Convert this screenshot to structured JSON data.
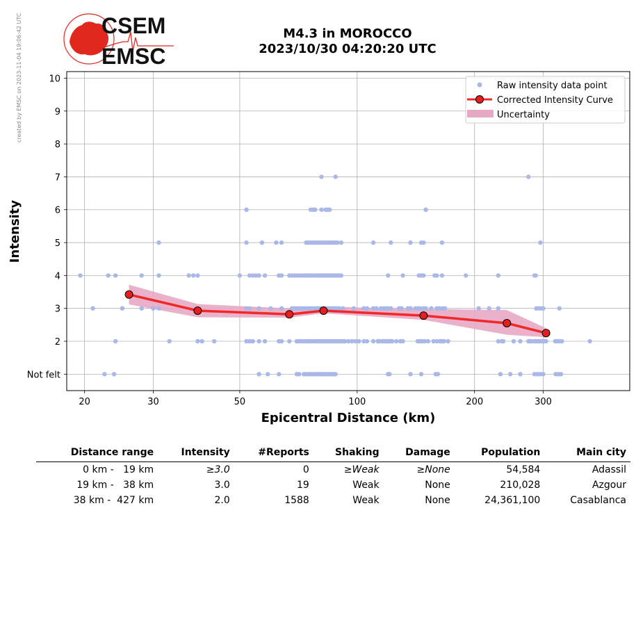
{
  "side_note": "created by EMSC on 2023-11-04 19:06:42 UTC",
  "logo": {
    "line1": "CSEM",
    "line2": "EMSC",
    "accent": "#e0281f"
  },
  "title": {
    "line1": "M4.3 in MOROCCO",
    "line2": "2023/10/30 04:20:20 UTC"
  },
  "chart_data": {
    "type": "scatter",
    "xlabel": "Epicentral Distance (km)",
    "ylabel": "Intensity",
    "x_scale": "log",
    "xlim": [
      18,
      500
    ],
    "ylim": [
      0.5,
      10.2
    ],
    "x_ticks": [
      20,
      30,
      50,
      100,
      200,
      300
    ],
    "y_ticks": [
      {
        "value": 1,
        "label": "Not felt"
      },
      {
        "value": 2,
        "label": "2"
      },
      {
        "value": 3,
        "label": "3"
      },
      {
        "value": 4,
        "label": "4"
      },
      {
        "value": 5,
        "label": "5"
      },
      {
        "value": 6,
        "label": "6"
      },
      {
        "value": 7,
        "label": "7"
      },
      {
        "value": 8,
        "label": "8"
      },
      {
        "value": 9,
        "label": "9"
      },
      {
        "value": 10,
        "label": "10"
      }
    ],
    "grid": true,
    "legend_position": "top-right",
    "legend": [
      "Raw intensity data point",
      "Corrected Intensity Curve",
      "Uncertainty"
    ],
    "colors": {
      "raw": "#aab8e8",
      "curve": "#f02828",
      "marker": "#e81e1e",
      "uncertainty": "#e8a8c4"
    },
    "raw_points": [
      {
        "y": 1,
        "x": [
          22.5,
          23.8,
          56,
          59,
          63,
          70,
          71,
          73,
          74,
          75,
          76,
          77,
          78,
          79,
          80,
          81,
          82,
          83,
          84,
          85,
          86,
          87,
          88,
          120,
          121,
          137,
          146,
          159,
          161,
          233,
          247,
          262,
          285,
          290,
          295,
          300,
          323,
          328,
          333
        ]
      },
      {
        "y": 2,
        "x": [
          24,
          33,
          39,
          40,
          43,
          52,
          53,
          54,
          56,
          58,
          63,
          64,
          67,
          70,
          71,
          72,
          73,
          74,
          75,
          76,
          77,
          78,
          79,
          80,
          81,
          82,
          83,
          84,
          85,
          86,
          87,
          88,
          89,
          90,
          91,
          92,
          93,
          95,
          97,
          99,
          101,
          104,
          106,
          110,
          113,
          114,
          116,
          117,
          118,
          119,
          120,
          121,
          122,
          123,
          126,
          129,
          131,
          143,
          145,
          147,
          149,
          152,
          157,
          160,
          163,
          165,
          167,
          171,
          230,
          235,
          237,
          252,
          262,
          275,
          277,
          280,
          285,
          287,
          290,
          292,
          295,
          297,
          300,
          302,
          305,
          322,
          326,
          330,
          335,
          395
        ]
      },
      {
        "y": 3,
        "x": [
          21,
          25,
          28,
          30,
          31,
          52,
          53,
          56,
          60,
          64,
          68,
          69,
          70,
          71,
          72,
          73,
          74,
          75,
          76,
          77,
          78,
          79,
          80,
          81,
          82,
          83,
          84,
          85,
          86,
          87,
          88,
          89,
          90,
          92,
          98,
          104,
          106,
          110,
          112,
          115,
          117,
          119,
          120,
          122,
          128,
          130,
          135,
          137,
          141,
          143,
          145,
          148,
          150,
          155,
          160,
          163,
          166,
          168,
          205,
          218,
          230,
          288,
          292,
          296,
          300,
          330
        ]
      },
      {
        "y": 4,
        "x": [
          19.5,
          23,
          24,
          28,
          31,
          37,
          38,
          39,
          50,
          53,
          54,
          55,
          56,
          58,
          63,
          64,
          67,
          68,
          69,
          70,
          71,
          72,
          73,
          74,
          75,
          76,
          77,
          78,
          79,
          80,
          81,
          82,
          83,
          84,
          85,
          86,
          87,
          88,
          89,
          90,
          91,
          120,
          131,
          144,
          146,
          148,
          158,
          160,
          165,
          190,
          230,
          285,
          287
        ]
      },
      {
        "y": 5,
        "x": [
          31,
          52,
          57,
          62,
          64,
          74,
          75,
          76,
          77,
          78,
          79,
          80,
          81,
          82,
          83,
          84,
          85,
          86,
          87,
          88,
          89,
          91,
          110,
          122,
          137,
          146,
          148,
          165,
          295
        ]
      },
      {
        "y": 6,
        "x": [
          52,
          76,
          77,
          78,
          81,
          83,
          84,
          85,
          150
        ]
      },
      {
        "y": 7,
        "x": [
          81,
          88,
          275
        ]
      }
    ],
    "curve": [
      {
        "x": 26,
        "y": 3.42
      },
      {
        "x": 39,
        "y": 2.93
      },
      {
        "x": 67,
        "y": 2.82
      },
      {
        "x": 82,
        "y": 2.93
      },
      {
        "x": 148,
        "y": 2.78
      },
      {
        "x": 242,
        "y": 2.55
      },
      {
        "x": 305,
        "y": 2.25
      }
    ],
    "uncertainty": {
      "x": [
        26,
        39,
        67,
        82,
        148,
        242,
        305
      ],
      "upper": [
        3.72,
        3.13,
        3.0,
        3.05,
        2.98,
        2.95,
        2.4
      ],
      "lower": [
        3.12,
        2.73,
        2.72,
        2.85,
        2.65,
        2.2,
        2.12
      ]
    }
  },
  "table": {
    "headers": [
      "Distance range",
      "Intensity",
      "#Reports",
      "Shaking",
      "Damage",
      "Population",
      "Main city"
    ],
    "rows": [
      {
        "range": "0 km -   19 km",
        "intensity": "≥3.0",
        "reports": "0",
        "shaking": "≥Weak",
        "damage": "≥None",
        "population": "54,584",
        "city": "Adassil"
      },
      {
        "range": "19 km -   38 km",
        "intensity": "3.0",
        "reports": "19",
        "shaking": "Weak",
        "damage": "None",
        "population": "210,028",
        "city": "Azgour"
      },
      {
        "range": "38 km -  427 km",
        "intensity": "2.0",
        "reports": "1588",
        "shaking": "Weak",
        "damage": "None",
        "population": "24,361,100",
        "city": "Casablanca"
      }
    ]
  }
}
